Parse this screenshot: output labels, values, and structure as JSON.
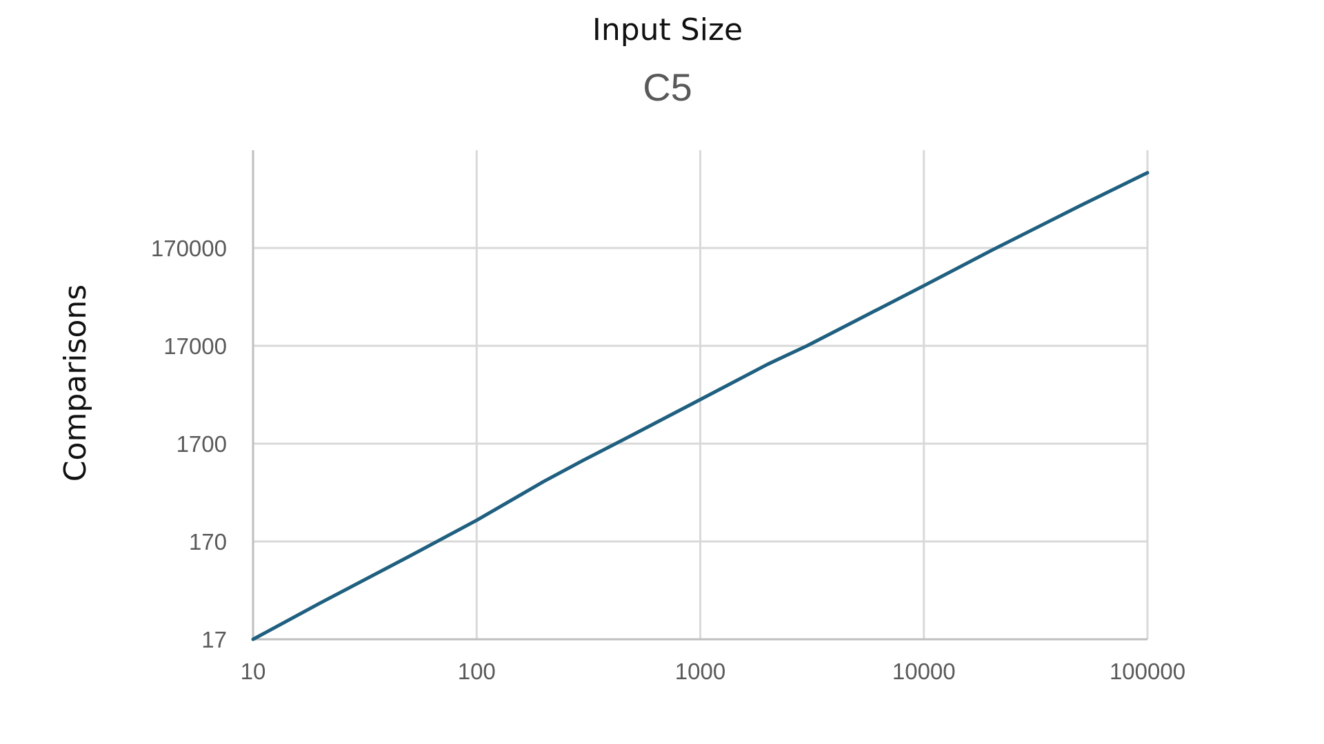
{
  "chart_data": {
    "type": "line",
    "title": "C5",
    "xlabel": "Input Size",
    "ylabel": "Comparisons",
    "x_scale": "log",
    "y_scale": "log",
    "xlim": [
      10,
      100000
    ],
    "ylim": [
      17,
      1700000
    ],
    "x_ticks": [
      "10",
      "100",
      "1000",
      "10000",
      "100000"
    ],
    "y_ticks": [
      "17",
      "170",
      "1700",
      "17000",
      "170000"
    ],
    "grid": true,
    "legend": "none",
    "colors": {
      "series": "#1f5f7f"
    },
    "series": [
      {
        "x": [
          10,
          20,
          50,
          100,
          200,
          300,
          500,
          1000,
          2000,
          3000,
          5000,
          10000,
          20000,
          50000,
          100000
        ],
        "y": [
          17,
          40,
          120,
          280,
          700,
          1150,
          2100,
          4800,
          11000,
          17000,
          31000,
          70000,
          160000,
          460000,
          1000000
        ]
      }
    ]
  }
}
